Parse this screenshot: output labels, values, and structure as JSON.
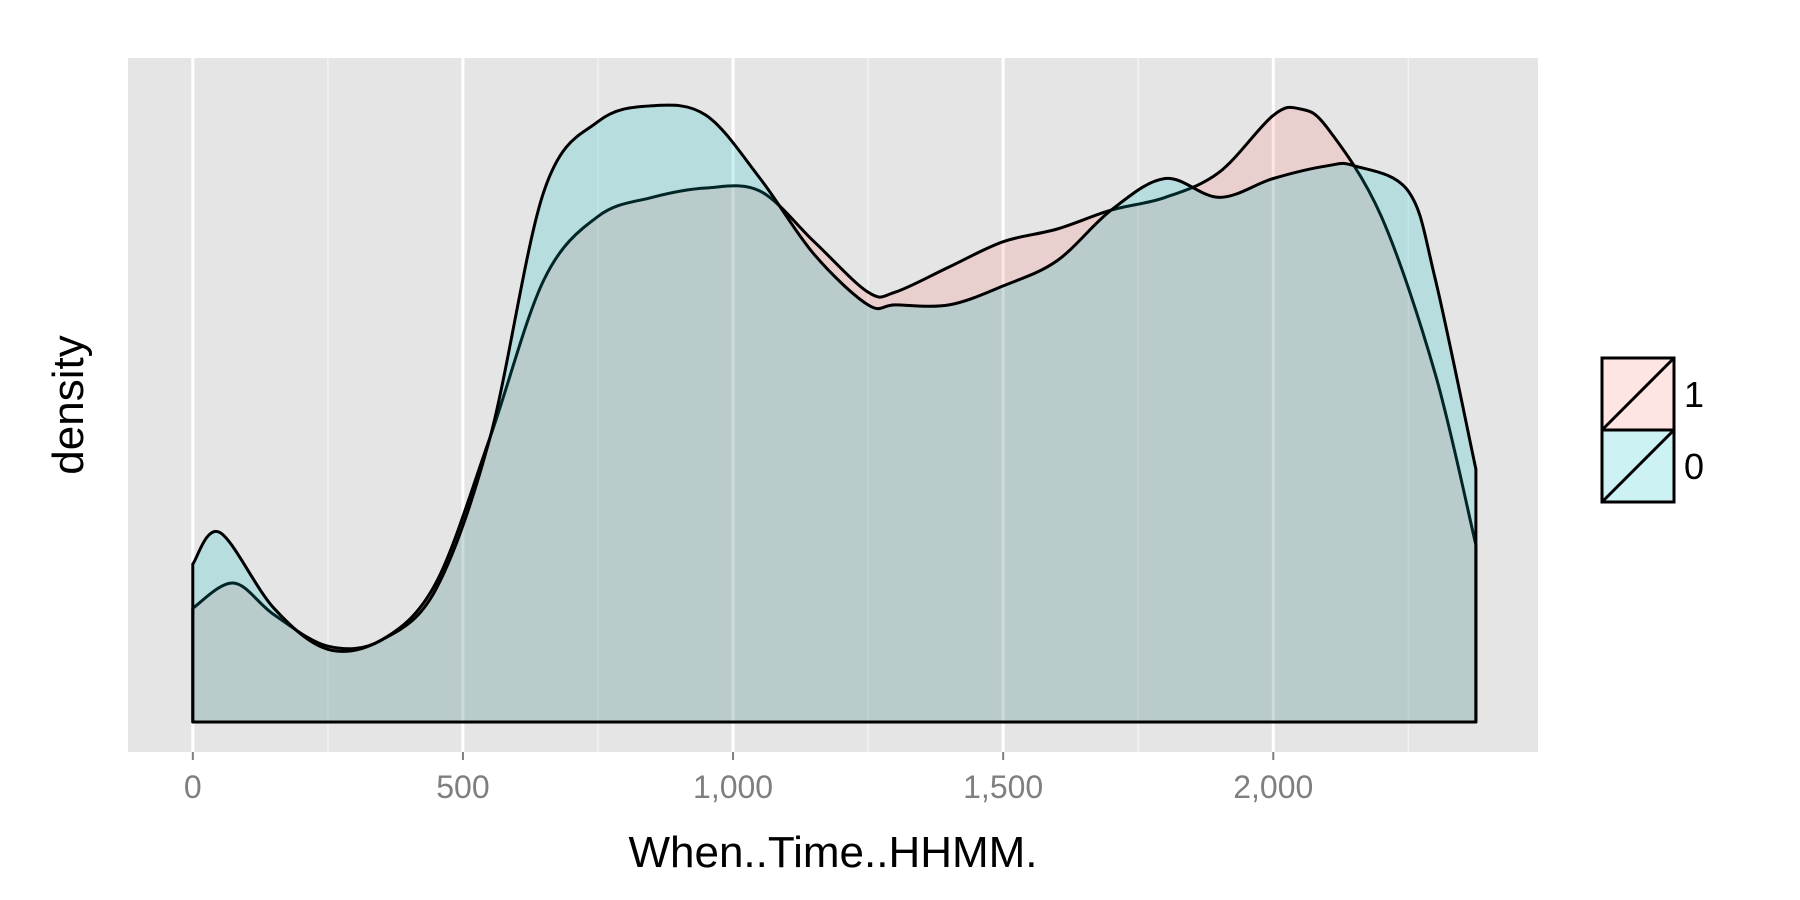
{
  "chart_data": {
    "type": "area",
    "title": "",
    "xlabel": "When..Time..HHMM.",
    "ylabel": "density",
    "xlim": [
      -120,
      2490
    ],
    "ylim": [
      0,
      1.0
    ],
    "x_ticks": [
      0,
      500,
      1000,
      1500,
      2000
    ],
    "x_tick_labels": [
      "0",
      "500",
      "1,000",
      "1,500",
      "2,000"
    ],
    "x_minor_ticks": [
      250,
      750,
      1250,
      1750,
      2250
    ],
    "grid": true,
    "y_ticks_shown": false,
    "legend": {
      "placement": "right",
      "entries": [
        {
          "label": "1",
          "color": "#F8766D"
        },
        {
          "label": "0",
          "color": "#00BFC4"
        }
      ]
    },
    "fill_opacity": 0.2,
    "series": [
      {
        "name": "1",
        "color": "#F8766D",
        "x": [
          0,
          75,
          150,
          250,
          350,
          450,
          550,
          650,
          750,
          850,
          950,
          1050,
          1150,
          1250,
          1300,
          1400,
          1500,
          1600,
          1700,
          1800,
          1900,
          2000,
          2050,
          2100,
          2200,
          2300,
          2375
        ],
        "y": [
          0.18,
          0.22,
          0.17,
          0.12,
          0.13,
          0.22,
          0.45,
          0.7,
          0.8,
          0.83,
          0.845,
          0.84,
          0.76,
          0.68,
          0.68,
          0.72,
          0.76,
          0.78,
          0.81,
          0.83,
          0.87,
          0.96,
          0.97,
          0.94,
          0.8,
          0.55,
          0.28
        ]
      },
      {
        "name": "0",
        "color": "#00BFC4",
        "x": [
          0,
          50,
          150,
          250,
          350,
          450,
          550,
          650,
          750,
          850,
          950,
          1050,
          1150,
          1250,
          1300,
          1400,
          1500,
          1600,
          1700,
          1800,
          1900,
          2000,
          2100,
          2150,
          2250,
          2300,
          2375
        ],
        "y": [
          0.25,
          0.3,
          0.18,
          0.115,
          0.13,
          0.21,
          0.45,
          0.84,
          0.95,
          0.975,
          0.96,
          0.86,
          0.74,
          0.66,
          0.66,
          0.66,
          0.69,
          0.73,
          0.81,
          0.86,
          0.83,
          0.86,
          0.88,
          0.88,
          0.84,
          0.7,
          0.4
        ]
      }
    ]
  }
}
